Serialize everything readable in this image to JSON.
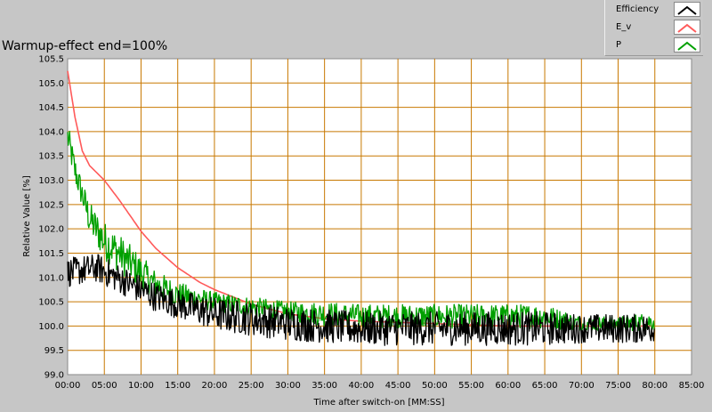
{
  "chart_data": {
    "type": "line",
    "title": "Warmup-effect end=100%",
    "xlabel": "Time after switch-on [MM:SS]",
    "ylabel": "Relative Value [%]",
    "xlim": [
      0,
      85
    ],
    "ylim": [
      99.0,
      105.5
    ],
    "x_tick_labels": [
      "00:00",
      "05:00",
      "10:00",
      "15:00",
      "20:00",
      "25:00",
      "30:00",
      "35:00",
      "40:00",
      "45:00",
      "50:00",
      "55:00",
      "60:00",
      "65:00",
      "70:00",
      "75:00",
      "80:00",
      "85:00"
    ],
    "y_tick_labels": [
      "99.0",
      "99.5",
      "100.0",
      "100.5",
      "101.0",
      "101.5",
      "102.0",
      "102.5",
      "103.0",
      "103.5",
      "104.0",
      "104.5",
      "105.0",
      "105.5"
    ],
    "grid": true,
    "legend_position": "top-right",
    "series": [
      {
        "name": "Efficiency",
        "color": "#000000",
        "x": [
          0,
          2,
          4,
          6,
          8,
          10,
          12,
          15,
          20,
          25,
          30,
          35,
          40,
          45,
          50,
          55,
          60,
          65,
          70,
          75,
          80
        ],
        "y": [
          101.1,
          101.15,
          101.2,
          101.05,
          100.9,
          100.75,
          100.6,
          100.45,
          100.25,
          100.15,
          100.05,
          100.0,
          99.95,
          99.95,
          99.95,
          99.95,
          99.95,
          99.95,
          99.95,
          99.95,
          99.95
        ],
        "noise": [
          0.3,
          0.3,
          0.3,
          0.3,
          0.3,
          0.3,
          0.3,
          0.3,
          0.35,
          0.35,
          0.35,
          0.35,
          0.35,
          0.35,
          0.35,
          0.35,
          0.35,
          0.35,
          0.3,
          0.3,
          0.3
        ]
      },
      {
        "name": "E_v",
        "color": "#ff5a5a",
        "x": [
          0,
          1,
          2,
          3,
          5,
          7,
          10,
          12,
          15,
          18,
          20,
          25,
          30,
          35,
          40,
          50,
          60,
          70,
          80
        ],
        "y": [
          105.25,
          104.3,
          103.6,
          103.3,
          103.0,
          102.6,
          101.95,
          101.6,
          101.2,
          100.9,
          100.75,
          100.45,
          100.25,
          100.15,
          100.1,
          100.05,
          100.0,
          100.0,
          100.0
        ],
        "noise": [
          0,
          0,
          0,
          0,
          0,
          0,
          0,
          0,
          0,
          0,
          0,
          0,
          0,
          0,
          0,
          0,
          0,
          0,
          0
        ]
      },
      {
        "name": "P",
        "color": "#00a000",
        "x": [
          0,
          1,
          2,
          3,
          5,
          7,
          10,
          12,
          15,
          20,
          25,
          30,
          35,
          40,
          45,
          50,
          55,
          60,
          65,
          70,
          75,
          80
        ],
        "y": [
          103.9,
          103.2,
          102.7,
          102.2,
          101.75,
          101.5,
          101.1,
          100.85,
          100.65,
          100.5,
          100.4,
          100.3,
          100.25,
          100.2,
          100.2,
          100.2,
          100.2,
          100.2,
          100.2,
          100.05,
          100.05,
          100.1
        ],
        "noise": [
          0.3,
          0.3,
          0.3,
          0.35,
          0.4,
          0.4,
          0.35,
          0.3,
          0.25,
          0.2,
          0.2,
          0.2,
          0.25,
          0.25,
          0.25,
          0.25,
          0.25,
          0.25,
          0.25,
          0.15,
          0.15,
          0.2
        ]
      }
    ]
  }
}
